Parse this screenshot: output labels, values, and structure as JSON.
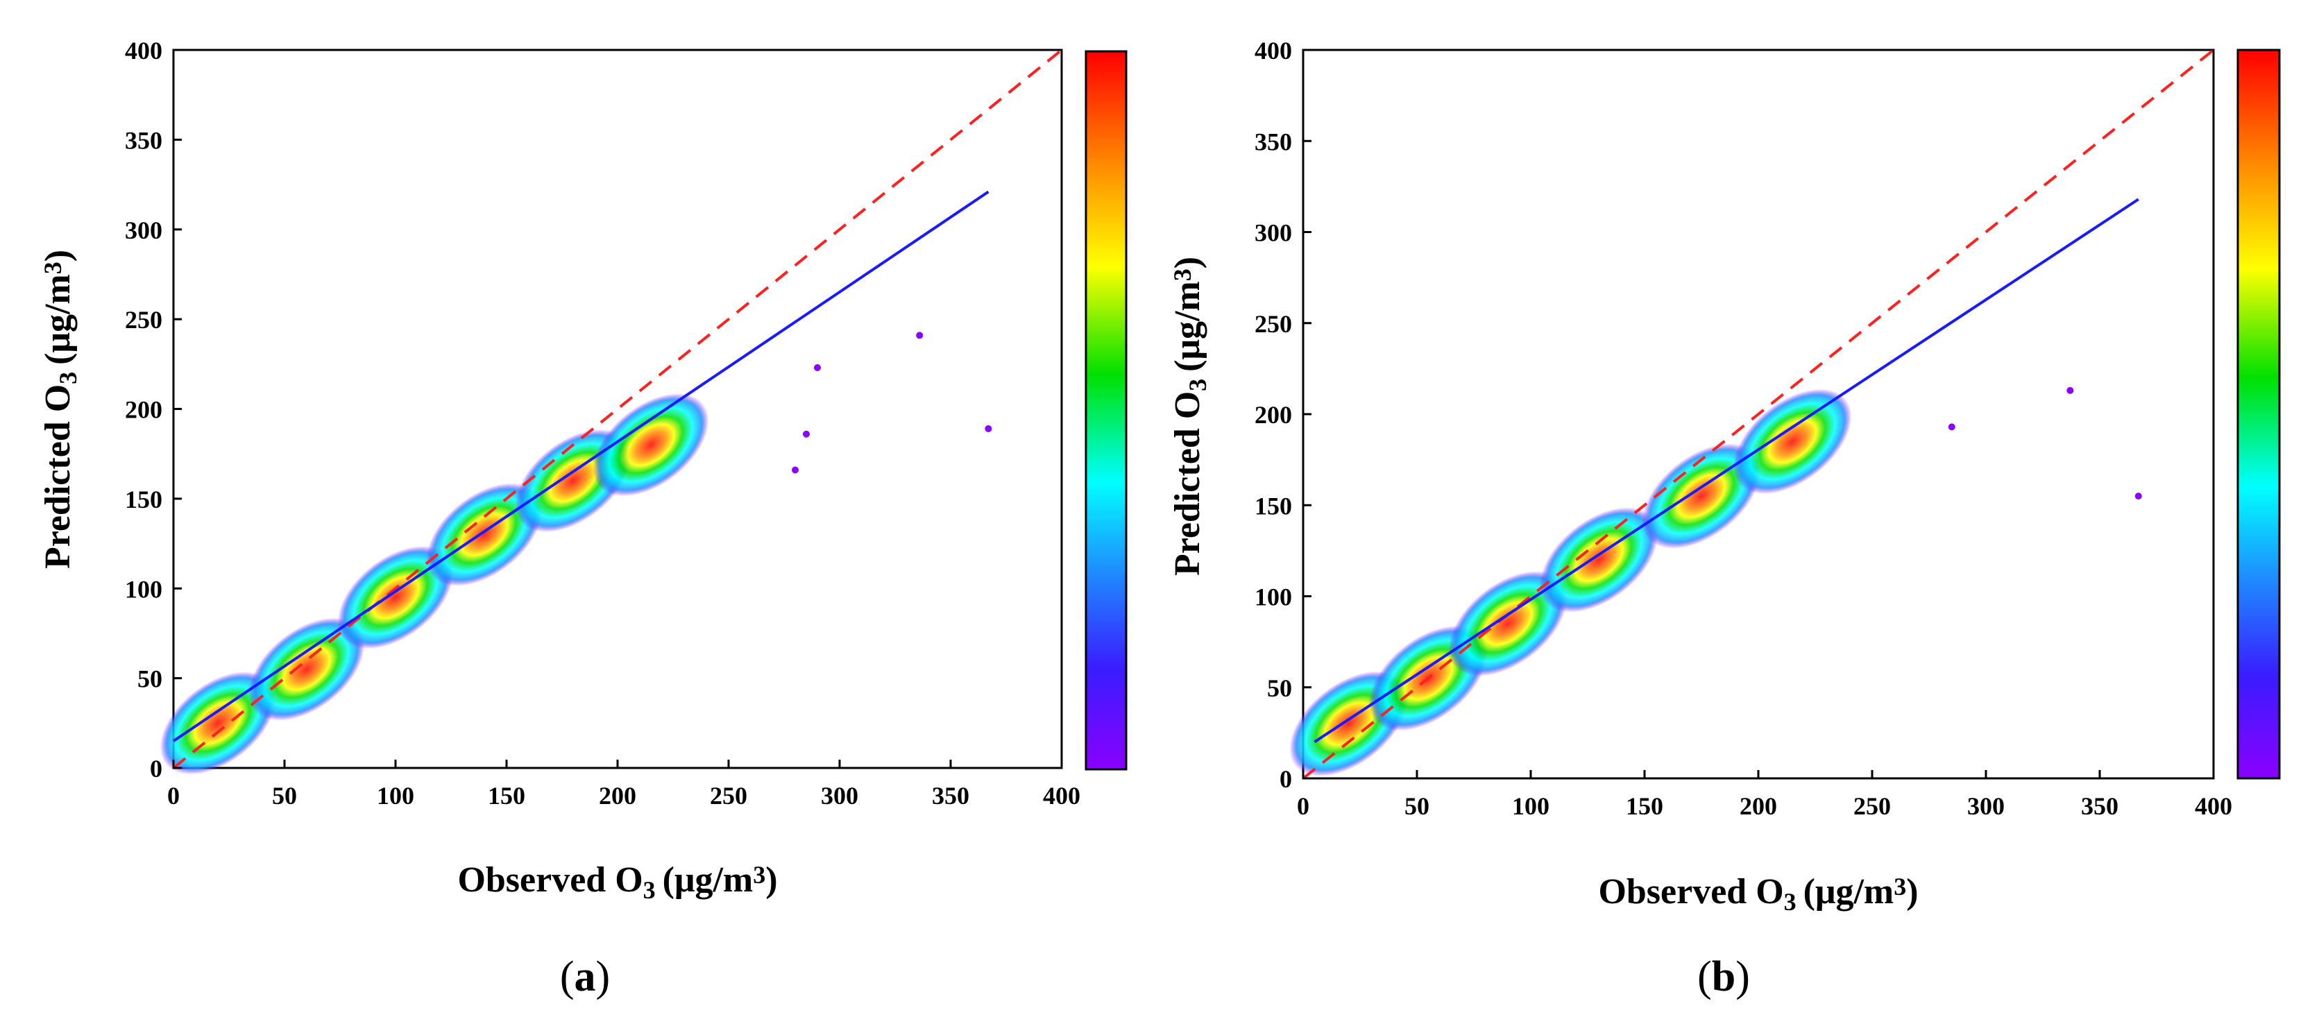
{
  "chart_data": [
    {
      "type": "scatter",
      "panel_label": "(a)",
      "panel_letter": "a",
      "xlabel": "Observed O",
      "ylabel": "Predicted O",
      "subscript": "3",
      "unit_open": "(μg/m",
      "unit_sup": "3",
      "unit_close": ")",
      "xlim": [
        0,
        400
      ],
      "ylim": [
        0,
        400
      ],
      "xticks": [
        0,
        50,
        100,
        150,
        200,
        250,
        300,
        350,
        400
      ],
      "yticks": [
        0,
        50,
        100,
        150,
        200,
        250,
        300,
        350,
        400
      ],
      "one_to_one_line": {
        "x": [
          0,
          400
        ],
        "y": [
          0,
          400
        ],
        "color": "#ff2020",
        "style": "dashed"
      },
      "regression_line": {
        "x": [
          0,
          367
        ],
        "y": [
          15,
          321
        ],
        "color": "#1a1aff",
        "style": "solid"
      },
      "density_ridge": {
        "points": [
          [
            20,
            25
          ],
          [
            60,
            55
          ],
          [
            100,
            95
          ],
          [
            140,
            130
          ],
          [
            180,
            160
          ],
          [
            215,
            180
          ]
        ]
      },
      "outliers": [
        [
          336,
          241
        ],
        [
          367,
          189
        ],
        [
          290,
          223
        ],
        [
          285,
          186
        ],
        [
          280,
          166
        ]
      ],
      "colorbar": {
        "colormap": "rainbow",
        "min_color": "#8b00ff",
        "max_color": "#ff0000"
      }
    },
    {
      "type": "scatter",
      "panel_label": "(b)",
      "panel_letter": "b",
      "xlabel": "Observed O",
      "ylabel": "Predicted O",
      "subscript": "3",
      "unit_open": "(μg/m",
      "unit_sup": "3",
      "unit_close": ")",
      "xlim": [
        0,
        400
      ],
      "ylim": [
        0,
        400
      ],
      "xticks": [
        0,
        50,
        100,
        150,
        200,
        250,
        300,
        350,
        400
      ],
      "yticks": [
        0,
        50,
        100,
        150,
        200,
        250,
        300,
        350,
        400
      ],
      "one_to_one_line": {
        "x": [
          0,
          400
        ],
        "y": [
          0,
          400
        ],
        "color": "#ff2020",
        "style": "dashed"
      },
      "regression_line": {
        "x": [
          5,
          367
        ],
        "y": [
          20,
          318
        ],
        "color": "#1a1aff",
        "style": "solid"
      },
      "density_ridge": {
        "points": [
          [
            20,
            30
          ],
          [
            55,
            55
          ],
          [
            90,
            85
          ],
          [
            130,
            120
          ],
          [
            175,
            155
          ],
          [
            215,
            185
          ]
        ]
      },
      "outliers": [
        [
          337,
          213
        ],
        [
          367,
          155
        ],
        [
          285,
          193
        ]
      ],
      "colorbar": {
        "colormap": "rainbow",
        "min_color": "#8b00ff",
        "max_color": "#ff0000"
      }
    }
  ]
}
